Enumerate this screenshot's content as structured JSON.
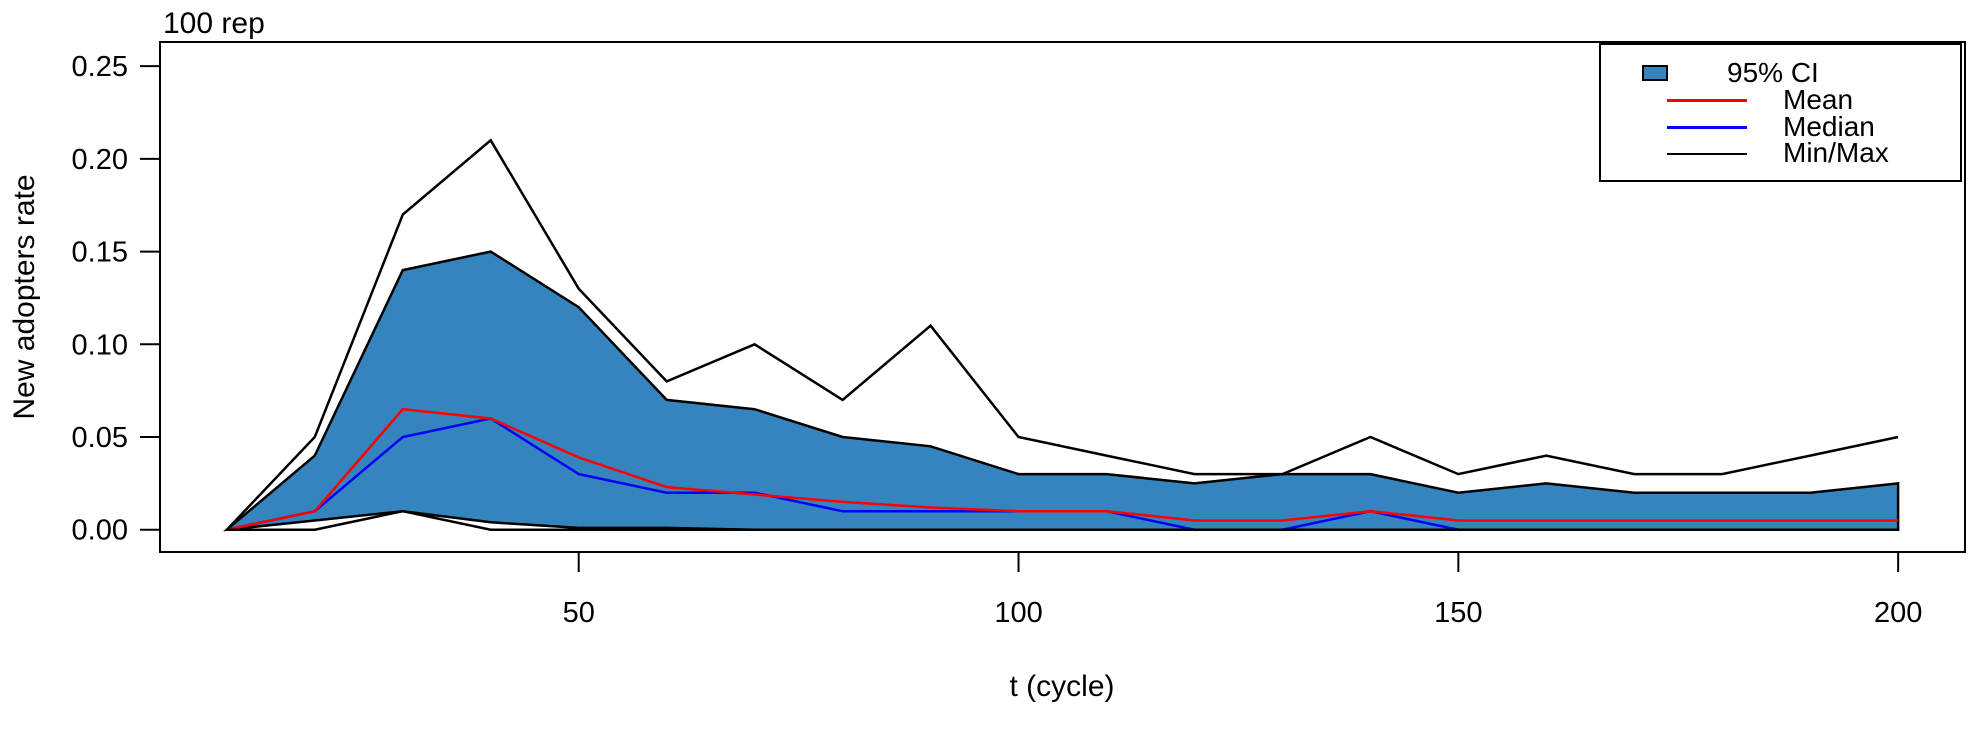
{
  "figure": {
    "annotation": "100 rep",
    "xlabel": "t (cycle)",
    "ylabel": "New adopters rate"
  },
  "chart_data": {
    "type": "area",
    "title": "100 rep",
    "xlabel": "t (cycle)",
    "ylabel": "New adopters rate",
    "grid": false,
    "legend_position": "top-right",
    "xlim": [
      2.4,
      207.6
    ],
    "ylim": [
      -0.012,
      0.263
    ],
    "x_ticks": [
      50,
      100,
      150,
      200
    ],
    "y_ticks": [
      "0.00",
      "0.05",
      "0.10",
      "0.15",
      "0.20",
      "0.25"
    ],
    "x": [
      10,
      20,
      30,
      40,
      50,
      60,
      70,
      80,
      90,
      100,
      110,
      120,
      130,
      140,
      150,
      160,
      170,
      180,
      190,
      200
    ],
    "band": {
      "name": "95% CI",
      "fill": "#3584BE",
      "stroke": "#000000",
      "upper": [
        0,
        0.04,
        0.14,
        0.15,
        0.12,
        0.07,
        0.065,
        0.05,
        0.045,
        0.03,
        0.03,
        0.025,
        0.03,
        0.03,
        0.02,
        0.025,
        0.02,
        0.02,
        0.02,
        0.025
      ],
      "lower": [
        0,
        0.005,
        0.01,
        0.004,
        0.001,
        0.001,
        0,
        0,
        0,
        0,
        0,
        0,
        0,
        0,
        0,
        0,
        0,
        0,
        0,
        0
      ]
    },
    "series": [
      {
        "name": "Mean",
        "color": "#FF0000",
        "values": [
          0,
          0.01,
          0.065,
          0.06,
          0.039,
          0.023,
          0.019,
          0.015,
          0.012,
          0.01,
          0.01,
          0.005,
          0.005,
          0.01,
          0.005,
          0.005,
          0.005,
          0.005,
          0.005,
          0.005
        ]
      },
      {
        "name": "Median",
        "color": "#0000FF",
        "values": [
          0,
          0.01,
          0.05,
          0.06,
          0.03,
          0.02,
          0.02,
          0.01,
          0.01,
          0.01,
          0.01,
          0,
          0,
          0.01,
          0,
          0,
          0,
          0,
          0,
          0
        ]
      },
      {
        "name": "Min",
        "color": "#000000",
        "values": [
          0,
          0,
          0.01,
          0,
          0,
          0,
          0,
          0,
          0,
          0,
          0,
          0,
          0,
          0,
          0,
          0,
          0,
          0,
          0,
          0
        ]
      },
      {
        "name": "Max",
        "color": "#000000",
        "values": [
          0,
          0.05,
          0.17,
          0.21,
          0.13,
          0.08,
          0.1,
          0.07,
          0.11,
          0.05,
          0.04,
          0.03,
          0.03,
          0.05,
          0.03,
          0.04,
          0.03,
          0.03,
          0.04,
          0.05
        ]
      }
    ],
    "legend": [
      {
        "label": "95% CI",
        "type": "fill",
        "color": "#3584BE"
      },
      {
        "label": "Mean",
        "type": "line",
        "color": "#FF0000"
      },
      {
        "label": "Median",
        "type": "line",
        "color": "#0000FF"
      },
      {
        "label": "Min/Max",
        "type": "line",
        "color": "#000000"
      }
    ]
  }
}
